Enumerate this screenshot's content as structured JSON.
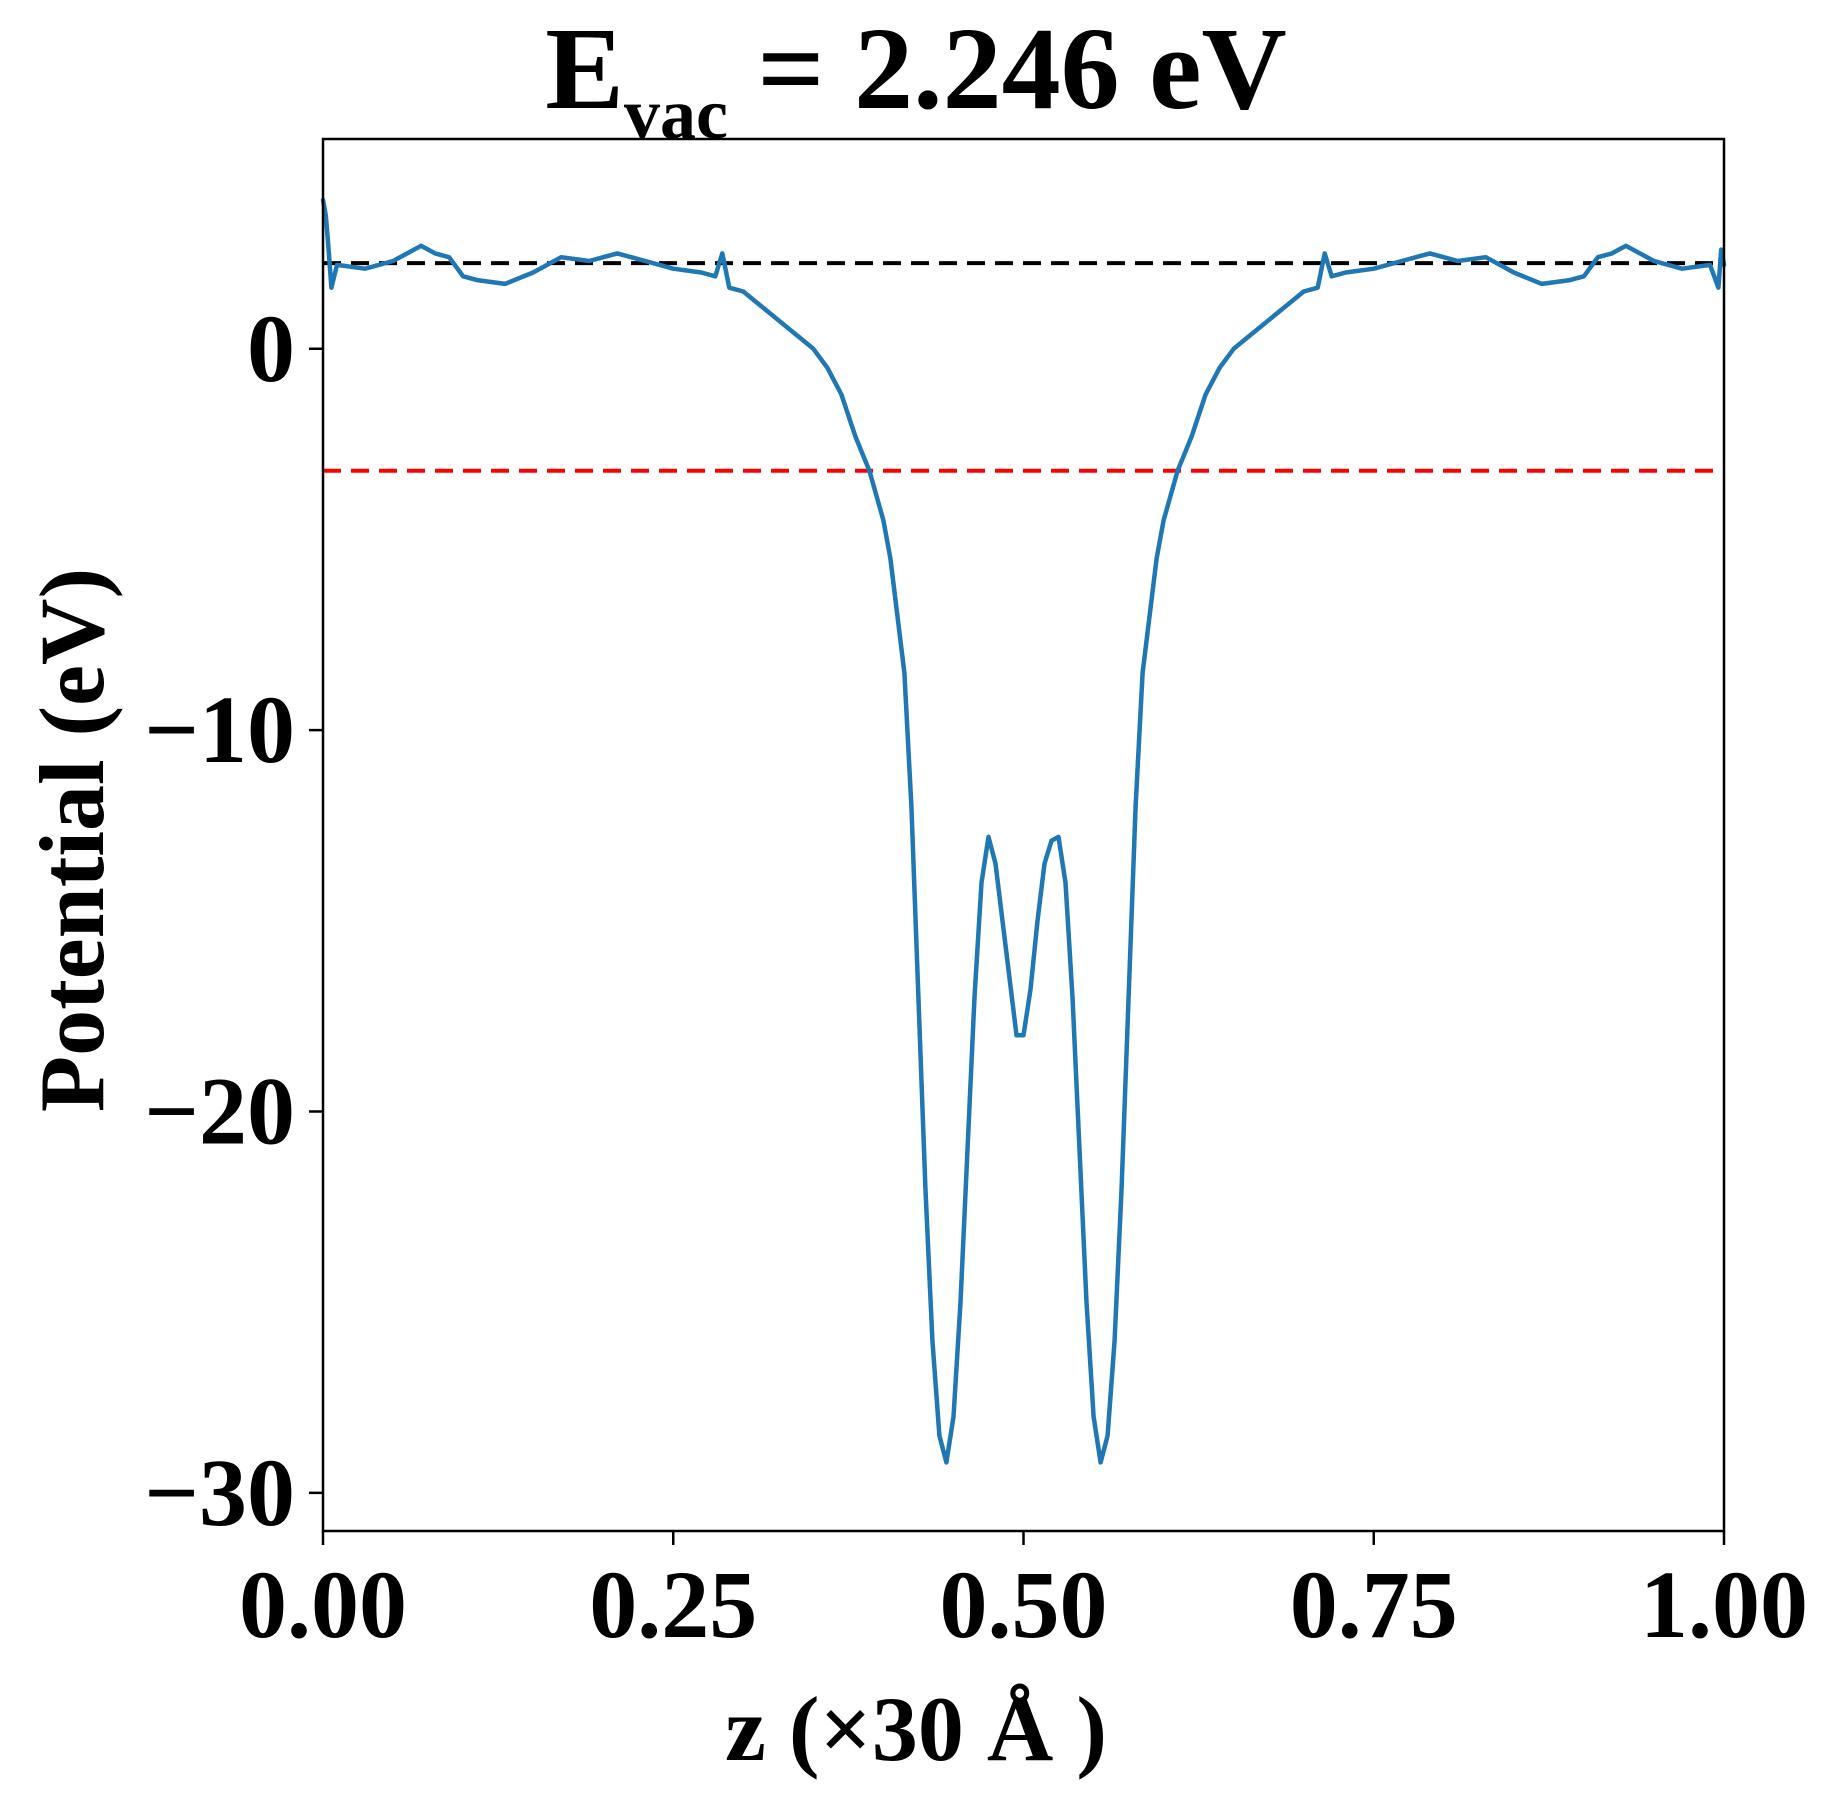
{
  "chart_data": {
    "type": "line",
    "title": {
      "symbol": "E",
      "subscript": "vac",
      "rest": " = 2.246 eV"
    },
    "xlabel": "z (×30 Å )",
    "ylabel": "Potential (eV)",
    "xlim": [
      0.0,
      1.0
    ],
    "ylim": [
      -31.0,
      5.5
    ],
    "xticks": [
      0.0,
      0.25,
      0.5,
      0.75,
      1.0
    ],
    "xtick_labels": [
      "0.00",
      "0.25",
      "0.50",
      "0.75",
      "1.00"
    ],
    "yticks": [
      0,
      -10,
      -20,
      -30
    ],
    "ytick_labels": [
      "0",
      "−10",
      "−20",
      "−30"
    ],
    "grid": false,
    "legend": "none",
    "hlines": [
      {
        "value": 2.246,
        "color": "#000000",
        "style": "dashed"
      },
      {
        "value": -3.2,
        "color": "#ff0000",
        "style": "dashed"
      }
    ],
    "series": [
      {
        "color": "#1f77b4",
        "x": [
          0.0,
          0.002,
          0.004,
          0.006,
          0.01,
          0.03,
          0.05,
          0.07,
          0.08,
          0.09,
          0.1,
          0.11,
          0.13,
          0.15,
          0.17,
          0.19,
          0.21,
          0.23,
          0.25,
          0.27,
          0.28,
          0.285,
          0.29,
          0.3,
          0.31,
          0.32,
          0.33,
          0.34,
          0.35,
          0.36,
          0.37,
          0.38,
          0.39,
          0.4,
          0.405,
          0.41,
          0.415,
          0.42,
          0.425,
          0.43,
          0.435,
          0.44,
          0.445,
          0.45,
          0.455,
          0.46,
          0.465,
          0.47,
          0.475,
          0.48,
          0.485,
          0.49,
          0.495,
          0.5,
          0.505,
          0.51,
          0.515,
          0.52,
          0.525,
          0.53,
          0.535,
          0.54,
          0.545,
          0.55,
          0.555,
          0.56,
          0.565,
          0.57,
          0.575,
          0.58,
          0.585,
          0.59,
          0.595,
          0.6,
          0.61,
          0.62,
          0.63,
          0.64,
          0.65,
          0.66,
          0.67,
          0.68,
          0.69,
          0.7,
          0.71,
          0.715,
          0.72,
          0.73,
          0.75,
          0.77,
          0.79,
          0.81,
          0.83,
          0.85,
          0.87,
          0.89,
          0.9,
          0.91,
          0.92,
          0.93,
          0.95,
          0.97,
          0.99,
          0.996,
          0.998,
          1.0
        ],
        "y": [
          3.9,
          3.5,
          2.6,
          1.6,
          2.2,
          2.1,
          2.3,
          2.7,
          2.5,
          2.4,
          1.9,
          1.8,
          1.7,
          2.0,
          2.4,
          2.3,
          2.5,
          2.3,
          2.1,
          2.0,
          1.9,
          2.5,
          1.6,
          1.5,
          1.2,
          0.9,
          0.6,
          0.3,
          0.0,
          -0.5,
          -1.2,
          -2.3,
          -3.2,
          -4.5,
          -5.5,
          -7.0,
          -8.5,
          -12.0,
          -17.0,
          -22.0,
          -26.0,
          -28.5,
          -29.2,
          -28.0,
          -25.0,
          -21.0,
          -17.0,
          -14.0,
          -12.8,
          -13.5,
          -15.0,
          -16.5,
          -18.0,
          -18.0,
          -16.8,
          -15.0,
          -13.5,
          -12.9,
          -12.8,
          -14.0,
          -17.0,
          -21.0,
          -25.0,
          -28.0,
          -29.2,
          -28.5,
          -26.0,
          -22.0,
          -17.0,
          -12.0,
          -8.5,
          -7.0,
          -5.5,
          -4.5,
          -3.2,
          -2.3,
          -1.2,
          -0.5,
          0.0,
          0.3,
          0.6,
          0.9,
          1.2,
          1.5,
          1.6,
          2.5,
          1.9,
          2.0,
          2.1,
          2.3,
          2.5,
          2.3,
          2.4,
          2.0,
          1.7,
          1.8,
          1.9,
          2.4,
          2.5,
          2.7,
          2.3,
          2.1,
          2.2,
          1.6,
          2.6,
          2.2
        ]
      }
    ]
  }
}
